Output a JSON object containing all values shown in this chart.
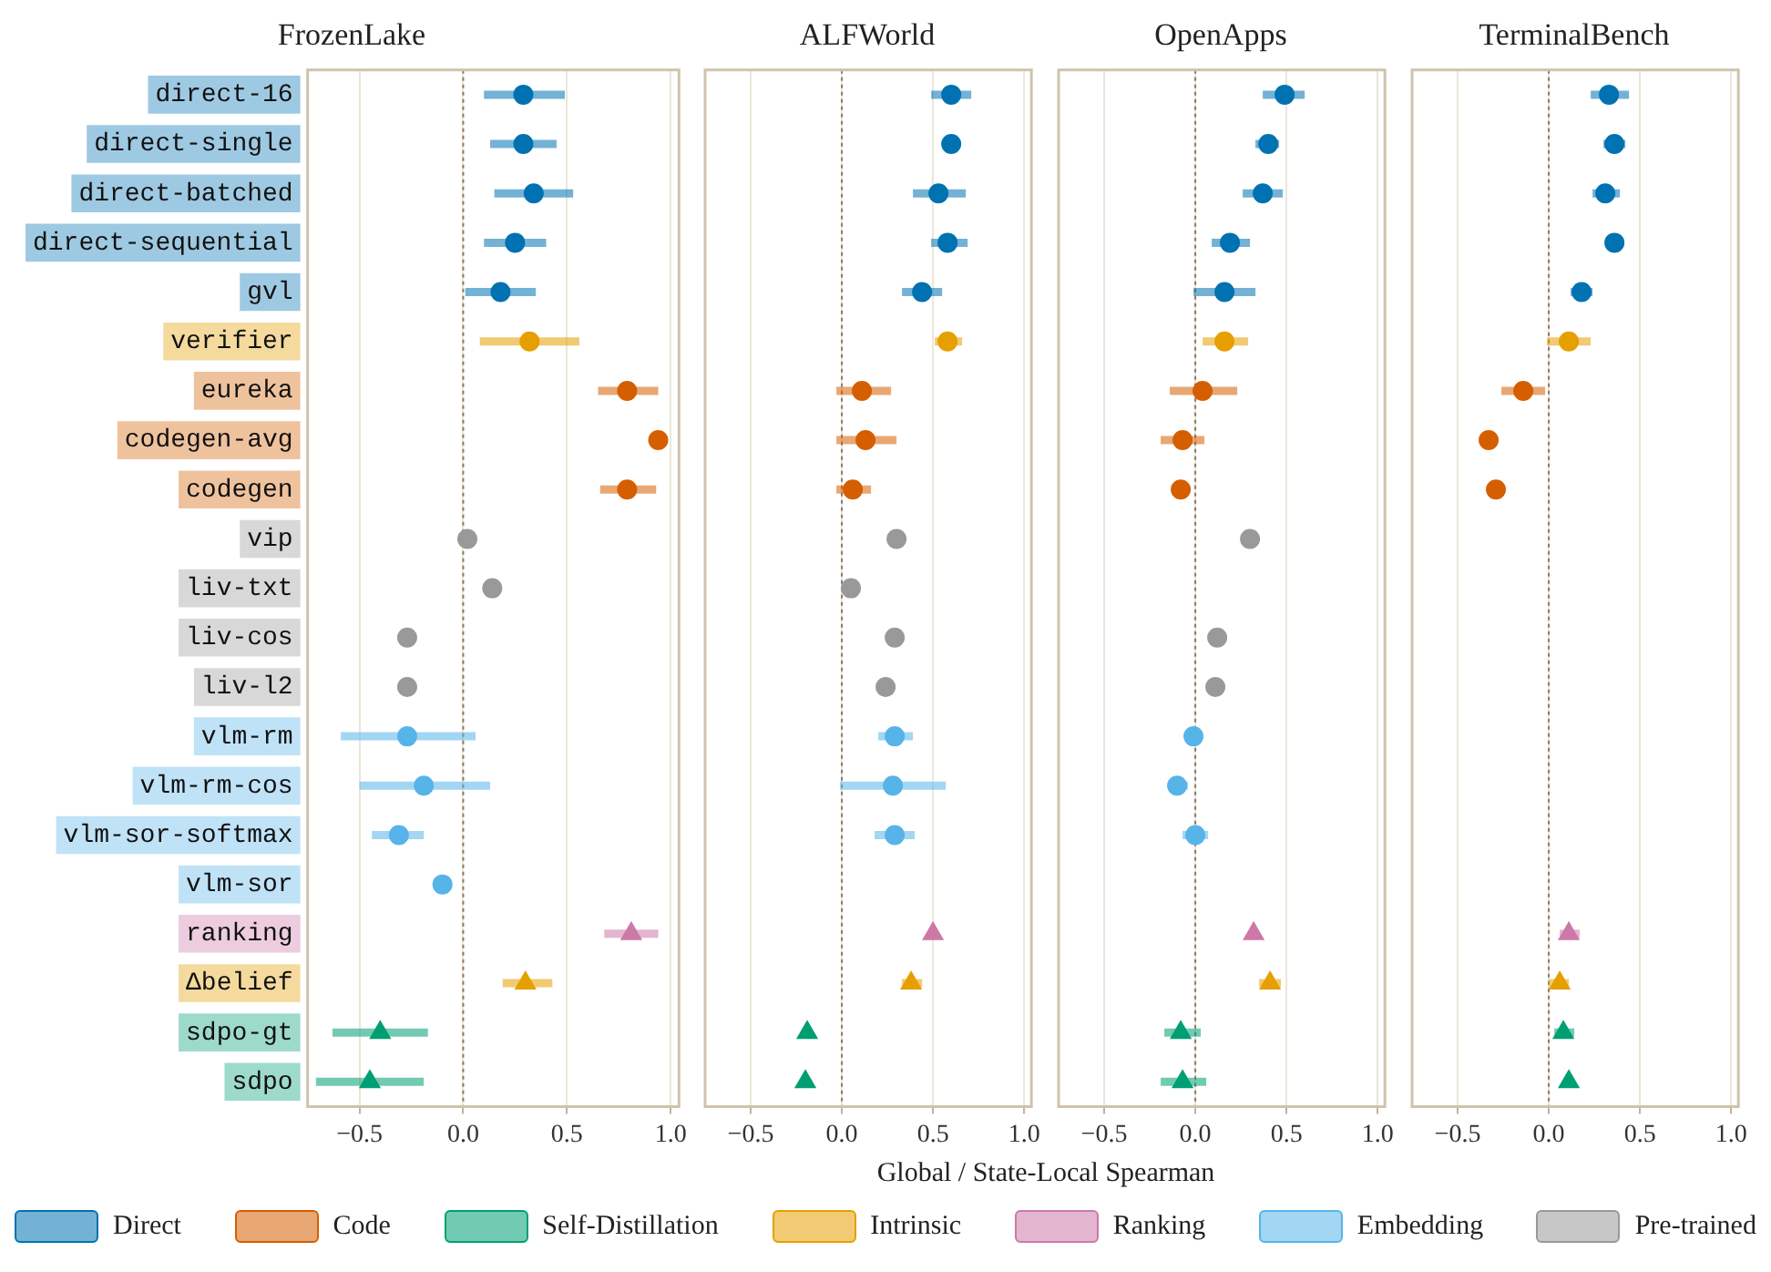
{
  "chart_data": [
    {
      "type": "scatter",
      "orientation": "horizontal",
      "title": "FrozenLake",
      "legend": "bottom",
      "grid": "x",
      "categories": [
        "direct-16",
        "direct-single",
        "direct-batched",
        "direct-sequential",
        "gvl",
        "verifier",
        "eureka",
        "codegen-avg",
        "codegen",
        "vip",
        "liv-txt",
        "liv-cos",
        "liv-l2",
        "vlm-rm",
        "vlm-rm-cos",
        "vlm-sor-softmax",
        "vlm-sor",
        "ranking",
        "Δbelief",
        "sdpo-gt",
        "sdpo"
      ],
      "xlim": [
        -0.75,
        1.04
      ],
      "xticks": [
        {
          "value": -0.5,
          "label": "−0.5"
        },
        {
          "value": 0,
          "label": "0.0"
        },
        {
          "value": 0.5,
          "label": "0.5"
        },
        {
          "value": 1,
          "label": "1.0"
        }
      ],
      "ref_lines": [
        {
          "axis": "x",
          "value": 0,
          "color": "#8a7a68",
          "line_style": "dotted"
        }
      ],
      "series": [
        {
          "name": "Direct",
          "color": "#0072b2",
          "marker": "circle",
          "values": [
            0.29,
            0.29,
            0.34,
            0.25,
            0.18,
            null,
            null,
            null,
            null,
            null,
            null,
            null,
            null,
            null,
            null,
            null,
            null,
            null,
            null,
            null,
            null
          ],
          "errors": [
            [
              0.1,
              0.49
            ],
            [
              0.13,
              0.45
            ],
            [
              0.15,
              0.53
            ],
            [
              0.1,
              0.4
            ],
            [
              0.01,
              0.35
            ],
            null,
            null,
            null,
            null,
            null,
            null,
            null,
            null,
            null,
            null,
            null,
            null,
            null,
            null,
            null,
            null
          ]
        },
        {
          "name": "Code",
          "color": "#d55e00",
          "marker": "circle",
          "values": [
            null,
            null,
            null,
            null,
            null,
            null,
            0.79,
            0.94,
            0.79,
            null,
            null,
            null,
            null,
            null,
            null,
            null,
            null,
            null,
            null,
            null,
            null
          ],
          "errors": [
            null,
            null,
            null,
            null,
            null,
            null,
            [
              0.65,
              0.94
            ],
            null,
            [
              0.66,
              0.93
            ],
            null,
            null,
            null,
            null,
            null,
            null,
            null,
            null,
            null,
            null,
            null,
            null
          ]
        },
        {
          "name": "Self-Distillation",
          "color": "#009e73",
          "marker": "triangle",
          "values": [
            null,
            null,
            null,
            null,
            null,
            null,
            null,
            null,
            null,
            null,
            null,
            null,
            null,
            null,
            null,
            null,
            null,
            null,
            null,
            -0.4,
            -0.45
          ],
          "errors": [
            null,
            null,
            null,
            null,
            null,
            null,
            null,
            null,
            null,
            null,
            null,
            null,
            null,
            null,
            null,
            null,
            null,
            null,
            null,
            [
              -0.63,
              -0.17
            ],
            [
              -0.71,
              -0.19
            ]
          ]
        },
        {
          "name": "Intrinsic",
          "color": "#e69f00",
          "marker": "circle",
          "values": [
            null,
            null,
            null,
            null,
            null,
            0.32,
            null,
            null,
            null,
            null,
            null,
            null,
            null,
            null,
            null,
            null,
            null,
            null,
            null,
            null,
            null
          ],
          "errors": [
            null,
            null,
            null,
            null,
            null,
            [
              0.08,
              0.56
            ],
            null,
            null,
            null,
            null,
            null,
            null,
            null,
            null,
            null,
            null,
            null,
            null,
            null,
            null,
            null
          ]
        },
        {
          "name": "Ranking",
          "color": "#cc79a7",
          "marker": "triangle",
          "values": [
            null,
            null,
            null,
            null,
            null,
            null,
            null,
            null,
            null,
            null,
            null,
            null,
            null,
            null,
            null,
            null,
            null,
            0.81,
            null,
            null,
            null
          ],
          "errors": [
            null,
            null,
            null,
            null,
            null,
            null,
            null,
            null,
            null,
            null,
            null,
            null,
            null,
            null,
            null,
            null,
            null,
            [
              0.68,
              0.94
            ],
            null,
            null,
            null
          ]
        },
        {
          "name": "Embedding",
          "color": "#56b4e9",
          "marker": "circle",
          "values": [
            null,
            null,
            null,
            null,
            null,
            null,
            null,
            null,
            null,
            null,
            null,
            null,
            null,
            -0.27,
            -0.19,
            -0.31,
            -0.1,
            null,
            null,
            null,
            null
          ],
          "errors": [
            null,
            null,
            null,
            null,
            null,
            null,
            null,
            null,
            null,
            null,
            null,
            null,
            null,
            [
              -0.59,
              0.06
            ],
            [
              -0.5,
              0.13
            ],
            [
              -0.44,
              -0.19
            ],
            null,
            null,
            null,
            null,
            null
          ]
        },
        {
          "name": "Pre-trained",
          "color": "#999999",
          "marker": "circle",
          "values": [
            null,
            null,
            null,
            null,
            null,
            null,
            null,
            null,
            null,
            0.02,
            0.14,
            -0.27,
            -0.27,
            null,
            null,
            null,
            null,
            null,
            null,
            null,
            null
          ]
        },
        {
          "color": "#e69f00",
          "marker": "triangle",
          "values": [
            null,
            null,
            null,
            null,
            null,
            null,
            null,
            null,
            null,
            null,
            null,
            null,
            null,
            null,
            null,
            null,
            null,
            null,
            0.3,
            null,
            null
          ],
          "errors": [
            null,
            null,
            null,
            null,
            null,
            null,
            null,
            null,
            null,
            null,
            null,
            null,
            null,
            null,
            null,
            null,
            null,
            null,
            [
              0.19,
              0.43
            ],
            null,
            null
          ]
        }
      ]
    },
    {
      "type": "scatter",
      "orientation": "horizontal",
      "title": "ALFWorld",
      "xlabel": "Global / State-Local Spearman",
      "grid": "x",
      "tick_labels": "x",
      "categories": [
        "direct-16",
        "direct-single",
        "direct-batched",
        "direct-sequential",
        "gvl",
        "verifier",
        "eureka",
        "codegen-avg",
        "codegen",
        "vip",
        "liv-txt",
        "liv-cos",
        "liv-l2",
        "vlm-rm",
        "vlm-rm-cos",
        "vlm-sor-softmax",
        "vlm-sor",
        "ranking",
        "Δbelief",
        "sdpo-gt",
        "sdpo"
      ],
      "xlim": [
        -0.75,
        1.04
      ],
      "xticks": [
        {
          "value": -0.5,
          "label": "−0.5"
        },
        {
          "value": 0,
          "label": "0.0"
        },
        {
          "value": 0.5,
          "label": "0.5"
        },
        {
          "value": 1,
          "label": "1.0"
        }
      ],
      "ref_lines": [
        {
          "axis": "x",
          "value": 0,
          "color": "#8a7a68",
          "line_style": "dotted"
        }
      ],
      "series": [
        {
          "name": "Direct",
          "color": "#0072b2",
          "marker": "circle",
          "values": [
            0.6,
            0.6,
            0.53,
            0.58,
            0.44,
            null,
            null,
            null,
            null,
            null,
            null,
            null,
            null,
            null,
            null,
            null,
            null,
            null,
            null,
            null,
            null
          ],
          "errors": [
            [
              0.49,
              0.71
            ],
            null,
            [
              0.39,
              0.68
            ],
            [
              0.49,
              0.69
            ],
            [
              0.33,
              0.55
            ],
            null,
            null,
            null,
            null,
            null,
            null,
            null,
            null,
            null,
            null,
            null,
            null,
            null,
            null,
            null,
            null
          ]
        },
        {
          "name": "Code",
          "color": "#d55e00",
          "marker": "circle",
          "values": [
            null,
            null,
            null,
            null,
            null,
            null,
            0.11,
            0.13,
            0.06,
            null,
            null,
            null,
            null,
            null,
            null,
            null,
            null,
            null,
            null,
            null,
            null
          ],
          "errors": [
            null,
            null,
            null,
            null,
            null,
            null,
            [
              -0.03,
              0.27
            ],
            [
              -0.03,
              0.3
            ],
            [
              -0.03,
              0.16
            ],
            null,
            null,
            null,
            null,
            null,
            null,
            null,
            null,
            null,
            null,
            null,
            null
          ]
        },
        {
          "name": "Self-Distillation",
          "color": "#009e73",
          "marker": "triangle",
          "values": [
            null,
            null,
            null,
            null,
            null,
            null,
            null,
            null,
            null,
            null,
            null,
            null,
            null,
            null,
            null,
            null,
            null,
            null,
            null,
            -0.19,
            -0.2
          ]
        },
        {
          "name": "Intrinsic",
          "color": "#e69f00",
          "marker": "circle",
          "values": [
            null,
            null,
            null,
            null,
            null,
            0.58,
            null,
            null,
            null,
            null,
            null,
            null,
            null,
            null,
            null,
            null,
            null,
            null,
            null,
            null,
            null
          ],
          "errors": [
            null,
            null,
            null,
            null,
            null,
            [
              0.51,
              0.66
            ],
            null,
            null,
            null,
            null,
            null,
            null,
            null,
            null,
            null,
            null,
            null,
            null,
            null,
            null,
            null
          ]
        },
        {
          "name": "Ranking",
          "color": "#cc79a7",
          "marker": "triangle",
          "values": [
            null,
            null,
            null,
            null,
            null,
            null,
            null,
            null,
            null,
            null,
            null,
            null,
            null,
            null,
            null,
            null,
            null,
            0.5,
            null,
            null,
            null
          ]
        },
        {
          "name": "Embedding",
          "color": "#56b4e9",
          "marker": "circle",
          "values": [
            null,
            null,
            null,
            null,
            null,
            null,
            null,
            null,
            null,
            null,
            null,
            null,
            null,
            0.29,
            0.28,
            0.29,
            null,
            null,
            null,
            null,
            null
          ],
          "errors": [
            null,
            null,
            null,
            null,
            null,
            null,
            null,
            null,
            null,
            null,
            null,
            null,
            null,
            [
              0.2,
              0.39
            ],
            [
              -0.01,
              0.57
            ],
            [
              0.18,
              0.4
            ],
            null,
            null,
            null,
            null,
            null
          ]
        },
        {
          "name": "Pre-trained",
          "color": "#999999",
          "marker": "circle",
          "values": [
            null,
            null,
            null,
            null,
            null,
            null,
            null,
            null,
            null,
            0.3,
            0.05,
            0.29,
            0.24,
            null,
            null,
            null,
            null,
            null,
            null,
            null,
            null
          ]
        },
        {
          "color": "#e69f00",
          "marker": "triangle",
          "values": [
            null,
            null,
            null,
            null,
            null,
            null,
            null,
            null,
            null,
            null,
            null,
            null,
            null,
            null,
            null,
            null,
            null,
            null,
            0.38,
            null,
            null
          ],
          "errors": [
            null,
            null,
            null,
            null,
            null,
            null,
            null,
            null,
            null,
            null,
            null,
            null,
            null,
            null,
            null,
            null,
            null,
            null,
            [
              0.33,
              0.44
            ],
            null,
            null
          ]
        }
      ]
    },
    {
      "type": "scatter",
      "orientation": "horizontal",
      "title": "OpenApps",
      "grid": "x",
      "tick_labels": "x",
      "categories": [
        "direct-16",
        "direct-single",
        "direct-batched",
        "direct-sequential",
        "gvl",
        "verifier",
        "eureka",
        "codegen-avg",
        "codegen",
        "vip",
        "liv-txt",
        "liv-cos",
        "liv-l2",
        "vlm-rm",
        "vlm-rm-cos",
        "vlm-sor-softmax",
        "vlm-sor",
        "ranking",
        "Δbelief",
        "sdpo-gt",
        "sdpo"
      ],
      "xlim": [
        -0.75,
        1.04
      ],
      "xticks": [
        {
          "value": -0.5,
          "label": "−0.5"
        },
        {
          "value": 0,
          "label": "0.0"
        },
        {
          "value": 0.5,
          "label": "0.5"
        },
        {
          "value": 1,
          "label": "1.0"
        }
      ],
      "ref_lines": [
        {
          "axis": "x",
          "value": 0,
          "color": "#8a7a68",
          "line_style": "dotted"
        }
      ],
      "series": [
        {
          "name": "Direct",
          "color": "#0072b2",
          "marker": "circle",
          "values": [
            0.49,
            0.4,
            0.37,
            0.19,
            0.16,
            null,
            null,
            null,
            null,
            null,
            null,
            null,
            null,
            null,
            null,
            null,
            null,
            null,
            null,
            null,
            null
          ],
          "errors": [
            [
              0.37,
              0.6
            ],
            [
              0.33,
              0.46
            ],
            [
              0.26,
              0.48
            ],
            [
              0.09,
              0.3
            ],
            [
              -0.01,
              0.33
            ],
            null,
            null,
            null,
            null,
            null,
            null,
            null,
            null,
            null,
            null,
            null,
            null,
            null,
            null,
            null,
            null
          ]
        },
        {
          "name": "Code",
          "color": "#d55e00",
          "marker": "circle",
          "values": [
            null,
            null,
            null,
            null,
            null,
            null,
            0.04,
            -0.07,
            -0.08,
            null,
            null,
            null,
            null,
            null,
            null,
            null,
            null,
            null,
            null,
            null,
            null
          ],
          "errors": [
            null,
            null,
            null,
            null,
            null,
            null,
            [
              -0.14,
              0.23
            ],
            [
              -0.19,
              0.05
            ],
            [
              -0.13,
              -0.03
            ],
            null,
            null,
            null,
            null,
            null,
            null,
            null,
            null,
            null,
            null,
            null,
            null
          ]
        },
        {
          "name": "Self-Distillation",
          "color": "#009e73",
          "marker": "triangle",
          "values": [
            null,
            null,
            null,
            null,
            null,
            null,
            null,
            null,
            null,
            null,
            null,
            null,
            null,
            null,
            null,
            null,
            null,
            null,
            null,
            -0.08,
            -0.07
          ],
          "errors": [
            null,
            null,
            null,
            null,
            null,
            null,
            null,
            null,
            null,
            null,
            null,
            null,
            null,
            null,
            null,
            null,
            null,
            null,
            null,
            [
              -0.17,
              0.03
            ],
            [
              -0.19,
              0.06
            ]
          ]
        },
        {
          "name": "Intrinsic",
          "color": "#e69f00",
          "marker": "circle",
          "values": [
            null,
            null,
            null,
            null,
            null,
            0.16,
            null,
            null,
            null,
            null,
            null,
            null,
            null,
            null,
            null,
            null,
            null,
            null,
            null,
            null,
            null
          ],
          "errors": [
            null,
            null,
            null,
            null,
            null,
            [
              0.04,
              0.29
            ],
            null,
            null,
            null,
            null,
            null,
            null,
            null,
            null,
            null,
            null,
            null,
            null,
            null,
            null,
            null
          ]
        },
        {
          "name": "Ranking",
          "color": "#cc79a7",
          "marker": "triangle",
          "values": [
            null,
            null,
            null,
            null,
            null,
            null,
            null,
            null,
            null,
            null,
            null,
            null,
            null,
            null,
            null,
            null,
            null,
            0.32,
            null,
            null,
            null
          ]
        },
        {
          "name": "Embedding",
          "color": "#56b4e9",
          "marker": "circle",
          "values": [
            null,
            null,
            null,
            null,
            null,
            null,
            null,
            null,
            null,
            null,
            null,
            null,
            null,
            -0.01,
            -0.1,
            0.0,
            null,
            null,
            null,
            null,
            null
          ],
          "errors": [
            null,
            null,
            null,
            null,
            null,
            null,
            null,
            null,
            null,
            null,
            null,
            null,
            null,
            null,
            [
              -0.15,
              -0.04
            ],
            [
              -0.07,
              0.07
            ],
            null,
            null,
            null,
            null,
            null
          ]
        },
        {
          "name": "Pre-trained",
          "color": "#999999",
          "marker": "circle",
          "values": [
            null,
            null,
            null,
            null,
            null,
            null,
            null,
            null,
            null,
            0.3,
            null,
            0.12,
            0.11,
            null,
            null,
            null,
            null,
            null,
            null,
            null,
            null
          ]
        },
        {
          "color": "#e69f00",
          "marker": "triangle",
          "values": [
            null,
            null,
            null,
            null,
            null,
            null,
            null,
            null,
            null,
            null,
            null,
            null,
            null,
            null,
            null,
            null,
            null,
            null,
            0.41,
            null,
            null
          ],
          "errors": [
            null,
            null,
            null,
            null,
            null,
            null,
            null,
            null,
            null,
            null,
            null,
            null,
            null,
            null,
            null,
            null,
            null,
            null,
            [
              0.35,
              0.47
            ],
            null,
            null
          ]
        }
      ]
    },
    {
      "type": "scatter",
      "orientation": "horizontal",
      "title": "TerminalBench",
      "grid": "x",
      "tick_labels": "x",
      "categories": [
        "direct-16",
        "direct-single",
        "direct-batched",
        "direct-sequential",
        "gvl",
        "verifier",
        "eureka",
        "codegen-avg",
        "codegen",
        "vip",
        "liv-txt",
        "liv-cos",
        "liv-l2",
        "vlm-rm",
        "vlm-rm-cos",
        "vlm-sor-softmax",
        "vlm-sor",
        "ranking",
        "Δbelief",
        "sdpo-gt",
        "sdpo"
      ],
      "xlim": [
        -0.75,
        1.04
      ],
      "xticks": [
        {
          "value": -0.5,
          "label": "−0.5"
        },
        {
          "value": 0,
          "label": "0.0"
        },
        {
          "value": 0.5,
          "label": "0.5"
        },
        {
          "value": 1,
          "label": "1.0"
        }
      ],
      "ref_lines": [
        {
          "axis": "x",
          "value": 0,
          "color": "#8a7a68",
          "line_style": "dotted"
        }
      ],
      "series": [
        {
          "name": "Direct",
          "color": "#0072b2",
          "marker": "circle",
          "values": [
            0.33,
            0.36,
            0.31,
            0.36,
            0.18,
            null,
            null,
            null,
            null,
            null,
            null,
            null,
            null,
            null,
            null,
            null,
            null,
            null,
            null,
            null,
            null
          ],
          "errors": [
            [
              0.23,
              0.44
            ],
            [
              0.3,
              0.42
            ],
            [
              0.24,
              0.39
            ],
            null,
            [
              0.12,
              0.24
            ],
            null,
            null,
            null,
            null,
            null,
            null,
            null,
            null,
            null,
            null,
            null,
            null,
            null,
            null,
            null,
            null
          ]
        },
        {
          "name": "Code",
          "color": "#d55e00",
          "marker": "circle",
          "values": [
            null,
            null,
            null,
            null,
            null,
            null,
            -0.14,
            -0.33,
            -0.29,
            null,
            null,
            null,
            null,
            null,
            null,
            null,
            null,
            null,
            null,
            null,
            null
          ],
          "errors": [
            null,
            null,
            null,
            null,
            null,
            null,
            [
              -0.26,
              -0.02
            ],
            null,
            null,
            null,
            null,
            null,
            null,
            null,
            null,
            null,
            null,
            null,
            null,
            null,
            null
          ]
        },
        {
          "name": "Self-Distillation",
          "color": "#009e73",
          "marker": "triangle",
          "values": [
            null,
            null,
            null,
            null,
            null,
            null,
            null,
            null,
            null,
            null,
            null,
            null,
            null,
            null,
            null,
            null,
            null,
            null,
            null,
            0.08,
            0.11
          ],
          "errors": [
            null,
            null,
            null,
            null,
            null,
            null,
            null,
            null,
            null,
            null,
            null,
            null,
            null,
            null,
            null,
            null,
            null,
            null,
            null,
            [
              0.03,
              0.14
            ],
            null
          ]
        },
        {
          "name": "Intrinsic",
          "color": "#e69f00",
          "marker": "circle",
          "values": [
            null,
            null,
            null,
            null,
            null,
            0.11,
            null,
            null,
            null,
            null,
            null,
            null,
            null,
            null,
            null,
            null,
            null,
            null,
            null,
            null,
            null
          ],
          "errors": [
            null,
            null,
            null,
            null,
            null,
            [
              -0.01,
              0.23
            ],
            null,
            null,
            null,
            null,
            null,
            null,
            null,
            null,
            null,
            null,
            null,
            null,
            null,
            null,
            null
          ]
        },
        {
          "name": "Ranking",
          "color": "#cc79a7",
          "marker": "triangle",
          "values": [
            null,
            null,
            null,
            null,
            null,
            null,
            null,
            null,
            null,
            null,
            null,
            null,
            null,
            null,
            null,
            null,
            null,
            0.11,
            null,
            null,
            null
          ],
          "errors": [
            null,
            null,
            null,
            null,
            null,
            null,
            null,
            null,
            null,
            null,
            null,
            null,
            null,
            null,
            null,
            null,
            null,
            [
              0.06,
              0.17
            ],
            null,
            null,
            null
          ]
        },
        {
          "color": "#e69f00",
          "marker": "triangle",
          "values": [
            null,
            null,
            null,
            null,
            null,
            null,
            null,
            null,
            null,
            null,
            null,
            null,
            null,
            null,
            null,
            null,
            null,
            null,
            0.06,
            null,
            null
          ],
          "errors": [
            null,
            null,
            null,
            null,
            null,
            null,
            null,
            null,
            null,
            null,
            null,
            null,
            null,
            null,
            null,
            null,
            null,
            null,
            [
              0.0,
              0.11
            ],
            null,
            null
          ]
        }
      ]
    }
  ]
}
